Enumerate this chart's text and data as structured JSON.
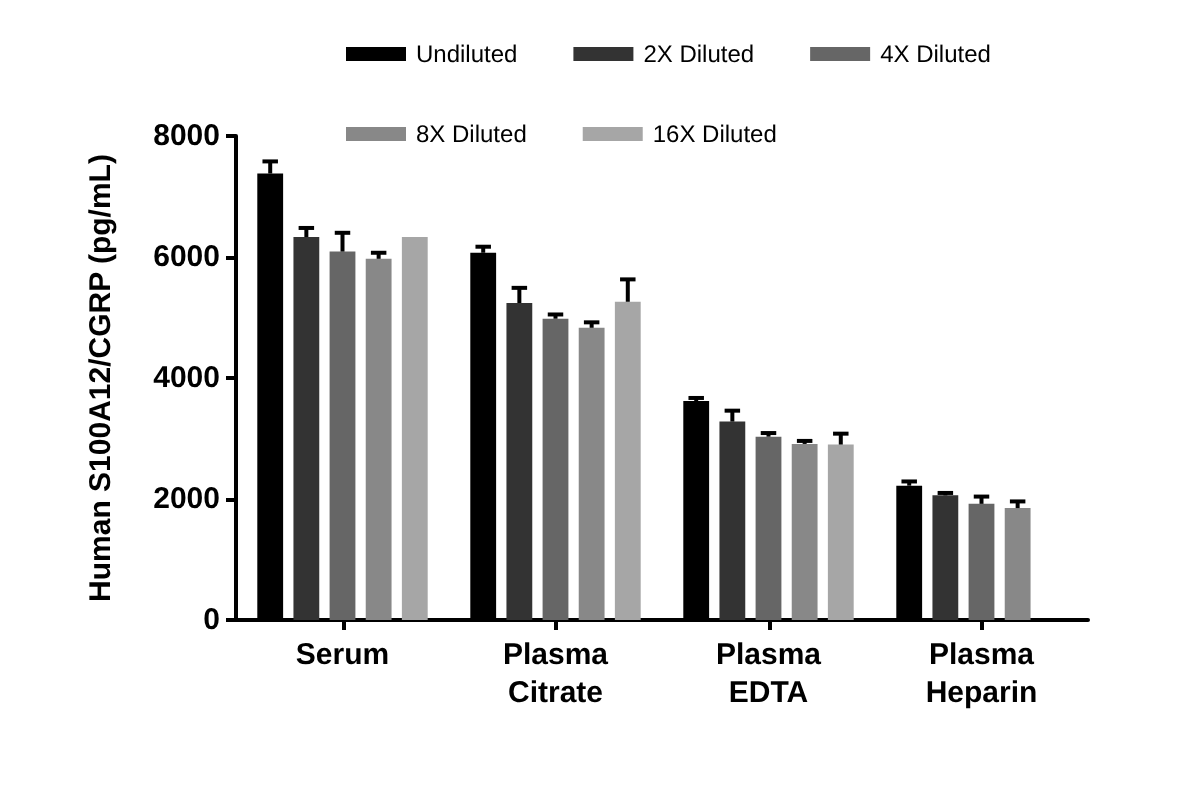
{
  "chart_data": {
    "type": "bar",
    "ylabel": "Human S100A12/CGRP (pg/mL)",
    "categories": [
      "Serum",
      "Plasma\nCitrate",
      "Plasma\nEDTA",
      "Plasma\nHeparin"
    ],
    "series": [
      {
        "name": "Undiluted",
        "color": "#000000",
        "values": [
          7380,
          6070,
          3620,
          2220
        ],
        "errors": [
          200,
          100,
          50,
          70
        ]
      },
      {
        "name": "2X Diluted",
        "color": "#333333",
        "values": [
          6330,
          5240,
          3280,
          2060
        ],
        "errors": [
          150,
          250,
          180,
          40
        ]
      },
      {
        "name": "4X Diluted",
        "color": "#666666",
        "values": [
          6090,
          4980,
          3030,
          1920
        ],
        "errors": [
          310,
          70,
          60,
          120
        ]
      },
      {
        "name": "8X Diluted",
        "color": "#888888",
        "values": [
          5970,
          4830,
          2910,
          1850
        ],
        "errors": [
          100,
          90,
          50,
          110
        ]
      },
      {
        "name": "16X Diluted",
        "color": "#a6a6a6",
        "values": [
          6330,
          5260,
          2900,
          null
        ],
        "errors": [
          null,
          370,
          180,
          null
        ]
      }
    ],
    "ylim": [
      0,
      8000
    ],
    "yticks": [
      0,
      2000,
      4000,
      6000,
      8000
    ],
    "grid": false,
    "legend": "top"
  }
}
